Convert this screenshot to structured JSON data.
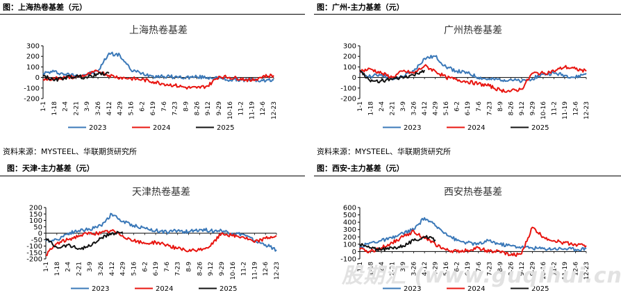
{
  "header": {
    "title_tl": "图：上海热卷基差（元）",
    "title_tr": "图：广州-主力基差（元）",
    "title_bl": "图：天津-主力基差（元）",
    "title_br": "图：西安-主力基差（元）"
  },
  "source": {
    "left": "资料来源：MYSTEEL、华联期货研究所",
    "right": "资料来源：MYSTEEL、华联期货研究所"
  },
  "watermark": "股期汇 (www.guqihui.cn)",
  "colors": {
    "2023": "#3a78b8",
    "2024": "#e8140f",
    "2025": "#111111"
  },
  "chart_data": [
    {
      "type": "line",
      "title": "上海热卷基差",
      "ylim": [
        -200,
        300
      ],
      "yticks": [
        300,
        200,
        100,
        0,
        -100,
        -200
      ],
      "x": [
        "1-1",
        "1-18",
        "2-4",
        "2-21",
        "3-9",
        "3-26",
        "4-12",
        "4-29",
        "5-16",
        "6-2",
        "6-19",
        "7-6",
        "7-23",
        "8-9",
        "8-26",
        "9-12",
        "9-29",
        "10-16",
        "11-2",
        "11-19",
        "12-6",
        "12-23"
      ],
      "grid": false,
      "legend": "bottom",
      "series": [
        {
          "name": "2023",
          "values": [
            40,
            55,
            30,
            20,
            30,
            60,
            230,
            210,
            70,
            40,
            15,
            10,
            5,
            0,
            5,
            0,
            -5,
            -25,
            -20,
            -25,
            -30,
            -25
          ]
        },
        {
          "name": "2024",
          "values": [
            -20,
            -10,
            0,
            5,
            25,
            60,
            20,
            0,
            -10,
            -20,
            -40,
            -60,
            -75,
            -95,
            -100,
            -80,
            10,
            0,
            -10,
            -30,
            10,
            20
          ]
        },
        {
          "name": "2025",
          "values": [
            20,
            -30,
            0,
            10,
            0,
            30,
            40,
            null,
            null,
            null,
            null,
            null,
            null,
            null,
            null,
            null,
            null,
            null,
            null,
            null,
            null,
            null
          ]
        }
      ]
    },
    {
      "type": "line",
      "title": "广州热卷基差",
      "ylim": [
        -200,
        300
      ],
      "yticks": [
        300,
        200,
        100,
        0,
        -100,
        -200
      ],
      "x": [
        "1-1",
        "1-18",
        "2-4",
        "2-21",
        "3-9",
        "3-26",
        "4-12",
        "4-29",
        "5-16",
        "6-2",
        "6-19",
        "7-6",
        "7-23",
        "8-9",
        "8-26",
        "9-12",
        "9-29",
        "10-16",
        "11-2",
        "11-19",
        "12-6",
        "12-23"
      ],
      "grid": false,
      "legend": "bottom",
      "series": [
        {
          "name": "2023",
          "values": [
            40,
            10,
            30,
            -20,
            10,
            60,
            180,
            200,
            100,
            60,
            40,
            0,
            -20,
            -20,
            -20,
            -40,
            -10,
            30,
            40,
            20,
            0,
            40
          ]
        },
        {
          "name": "2024",
          "values": [
            60,
            80,
            40,
            0,
            60,
            40,
            110,
            60,
            0,
            -20,
            -40,
            -60,
            -80,
            -120,
            -130,
            -110,
            40,
            40,
            60,
            100,
            80,
            60
          ]
        },
        {
          "name": "2025",
          "values": [
            70,
            -40,
            -30,
            -20,
            0,
            20,
            70,
            null,
            null,
            null,
            null,
            null,
            null,
            null,
            null,
            null,
            null,
            null,
            null,
            null,
            null,
            null
          ]
        }
      ]
    },
    {
      "type": "line",
      "title": "天津热卷基差",
      "ylim": [
        -200,
        200
      ],
      "yticks": [
        200,
        150,
        100,
        50,
        0,
        -50,
        -100,
        -150,
        -200
      ],
      "x": [
        "1-1",
        "1-18",
        "2-4",
        "2-21",
        "3-9",
        "3-26",
        "4-12",
        "4-29",
        "5-16",
        "6-2",
        "6-19",
        "7-6",
        "7-23",
        "8-9",
        "8-26",
        "9-12",
        "9-29",
        "10-16",
        "11-2",
        "11-19",
        "12-6",
        "12-23"
      ],
      "grid": false,
      "legend": "bottom",
      "series": [
        {
          "name": "2023",
          "values": [
            -60,
            -50,
            0,
            20,
            30,
            60,
            150,
            90,
            60,
            40,
            20,
            10,
            20,
            10,
            30,
            20,
            20,
            0,
            -10,
            -60,
            -90,
            -130
          ]
        },
        {
          "name": "2024",
          "values": [
            -170,
            -80,
            -50,
            -20,
            0,
            0,
            20,
            -20,
            -60,
            -80,
            -70,
            -90,
            -120,
            -140,
            -130,
            -100,
            0,
            -20,
            -30,
            -70,
            -40,
            -20
          ]
        },
        {
          "name": "2025",
          "values": [
            -40,
            -110,
            -90,
            -120,
            -100,
            -40,
            0,
            10,
            null,
            null,
            null,
            null,
            null,
            null,
            null,
            null,
            null,
            null,
            null,
            null,
            null,
            null
          ]
        }
      ]
    },
    {
      "type": "line",
      "title": "西安热卷基差",
      "ylim": [
        -100,
        600
      ],
      "yticks": [
        600,
        500,
        400,
        300,
        200,
        100,
        0,
        -100
      ],
      "x": [
        "1-1",
        "1-18",
        "2-4",
        "2-21",
        "3-9",
        "3-26",
        "4-12",
        "4-29",
        "5-16",
        "6-2",
        "6-19",
        "7-6",
        "7-23",
        "8-9",
        "8-26",
        "9-12",
        "9-29",
        "10-16",
        "11-2",
        "11-19",
        "12-6",
        "12-23"
      ],
      "grid": false,
      "legend": "bottom",
      "series": [
        {
          "name": "2023",
          "values": [
            60,
            120,
            150,
            180,
            250,
            300,
            460,
            350,
            250,
            150,
            120,
            100,
            150,
            100,
            80,
            60,
            50,
            40,
            40,
            40,
            30,
            40
          ]
        },
        {
          "name": "2024",
          "values": [
            30,
            0,
            50,
            120,
            200,
            280,
            180,
            100,
            20,
            0,
            20,
            50,
            0,
            0,
            -50,
            -30,
            330,
            200,
            150,
            120,
            100,
            80
          ]
        },
        {
          "name": "2025",
          "values": [
            100,
            50,
            20,
            50,
            80,
            150,
            200,
            160,
            null,
            null,
            null,
            null,
            null,
            null,
            null,
            null,
            null,
            null,
            null,
            null,
            null,
            null
          ]
        }
      ]
    }
  ]
}
